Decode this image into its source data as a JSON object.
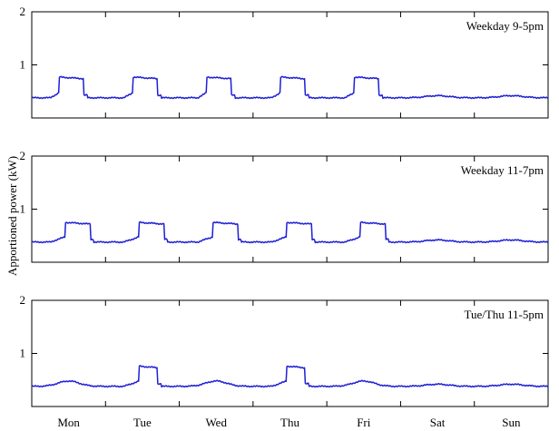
{
  "chart_data": [
    {
      "type": "line",
      "title": "Weekday 9-5pm",
      "ylim": [
        0,
        2
      ],
      "yticks": [
        1,
        2
      ],
      "xlim": [
        0,
        7
      ],
      "color": "#1f1fd6",
      "peaks": {
        "days": [
          0,
          1,
          2,
          3,
          4
        ],
        "start": 0.375,
        "end": 0.708,
        "level": 0.77
      },
      "ramps": {
        "start": 0.25,
        "mid": 0.7
      },
      "base": 0.38,
      "weekend_level": 0.42
    },
    {
      "type": "line",
      "title": "Weekday 11-7pm",
      "ylim": [
        0,
        2
      ],
      "yticks": [
        1,
        2
      ],
      "xlim": [
        0,
        7
      ],
      "color": "#1f1fd6",
      "peaks": {
        "days": [
          0,
          1,
          2,
          3,
          4
        ],
        "start": 0.458,
        "end": 0.792,
        "level": 0.75
      },
      "ramps": {
        "start": 0.25,
        "mid": 0.7
      },
      "base": 0.38,
      "weekend_level": 0.42
    },
    {
      "type": "line",
      "title": "Tue/Thu 11-5pm",
      "ylim": [
        0,
        2
      ],
      "yticks": [
        1,
        2
      ],
      "xlim": [
        0,
        7
      ],
      "color": "#1f1fd6",
      "peaks": {
        "days": [
          1,
          3
        ],
        "start": 0.458,
        "end": 0.708,
        "level": 0.76
      },
      "ramps": {
        "start": 0.25,
        "mid": 0.7
      },
      "base": 0.38,
      "weekend_level": 0.42
    }
  ],
  "xtick_labels": [
    "Mon",
    "Tue",
    "Wed",
    "Thu",
    "Fri",
    "Sat",
    "Sun"
  ],
  "ylabel": "Apportioned power (kW)"
}
